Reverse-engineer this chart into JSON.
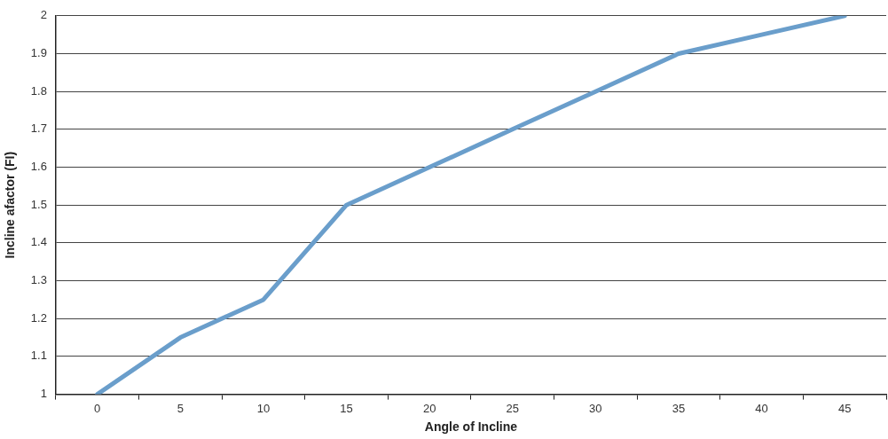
{
  "chart_data": {
    "type": "line",
    "xlabel": "Angle of Incline",
    "ylabel": "Incline afactor (FI)",
    "categories": [
      "0",
      "5",
      "10",
      "15",
      "20",
      "25",
      "30",
      "35",
      "40",
      "45"
    ],
    "series": [
      {
        "color": "#6a9ecb",
        "values": [
          1,
          1.15,
          1.25,
          1.5,
          1.6,
          1.7,
          1.8,
          1.9,
          1.95,
          2
        ]
      }
    ],
    "ylim": [
      1,
      2
    ],
    "yticks": [
      1,
      1.1,
      1.2,
      1.3,
      1.4,
      1.5,
      1.6,
      1.7,
      1.8,
      1.9,
      2
    ],
    "grid": "y"
  }
}
